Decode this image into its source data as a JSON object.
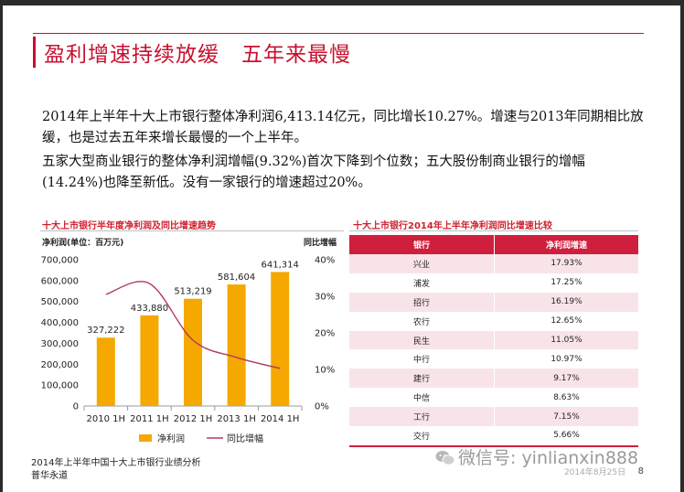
{
  "slide": {
    "title": "盈利增速持续放缓　五年来最慢",
    "paragraph1": "2014年上半年十大上市银行整体净利润6,413.14亿元，同比增长10.27%。增速与2013年同期相比放缓，也是过去五年来增长最慢的一个上半年。",
    "paragraph2": "五家大型商业银行的整体净利润增幅(9.32%)首次下降到个位数；五大股份制商业银行的增幅(14.24%)也降至新低。没有一家银行的增速超过20%。",
    "footer_line1": "2014年上半年中国十大上市银行业绩分析",
    "footer_line2": "普华永道",
    "page_number": "8",
    "watermark": "微信号: yinlianxin888",
    "watermark_date": "2014年8月25日"
  },
  "colors": {
    "accent": "#c8102e",
    "bar": "#f5a800",
    "line": "#b03a5a",
    "table_header": "#d01f3c",
    "table_stripe": "#f8e4e8"
  },
  "chart_data": [
    {
      "type": "bar",
      "title": "十大上市银行半年度净利润及同比增速趋势",
      "ylabel": "净利润(单位：百万元)",
      "y2label": "同比增幅",
      "categories": [
        "2010 1H",
        "2011 1H",
        "2012 1H",
        "2013 1H",
        "2014 1H"
      ],
      "ylim": [
        0,
        700000
      ],
      "yticks": [
        "0",
        "100,000",
        "200,000",
        "300,000",
        "400,000",
        "500,000",
        "600,000",
        "700,000"
      ],
      "y2lim": [
        0,
        40
      ],
      "y2ticks": [
        "0%",
        "10%",
        "20%",
        "30%",
        "40%"
      ],
      "series": [
        {
          "name": "净利润",
          "kind": "bar",
          "values": [
            327222,
            433880,
            513219,
            581604,
            641314
          ],
          "labels": [
            "327,222",
            "433,880",
            "513,219",
            "581,604",
            "641,314"
          ]
        },
        {
          "name": "同比增幅",
          "kind": "line",
          "axis": "right",
          "values": [
            30.5,
            33.5,
            18.0,
            13.3,
            10.3
          ]
        }
      ],
      "legend": "bottom"
    },
    {
      "type": "table",
      "title": "十大上市银行2014年上半年净利润同比增速比较",
      "columns": [
        "银行",
        "净利润增速"
      ],
      "rows": [
        [
          "兴业",
          "17.93%"
        ],
        [
          "浦发",
          "17.25%"
        ],
        [
          "招行",
          "16.19%"
        ],
        [
          "农行",
          "12.65%"
        ],
        [
          "民生",
          "11.05%"
        ],
        [
          "中行",
          "10.97%"
        ],
        [
          "建行",
          "9.17%"
        ],
        [
          "中信",
          "8.63%"
        ],
        [
          "工行",
          "7.15%"
        ],
        [
          "交行",
          "5.66%"
        ]
      ]
    }
  ]
}
